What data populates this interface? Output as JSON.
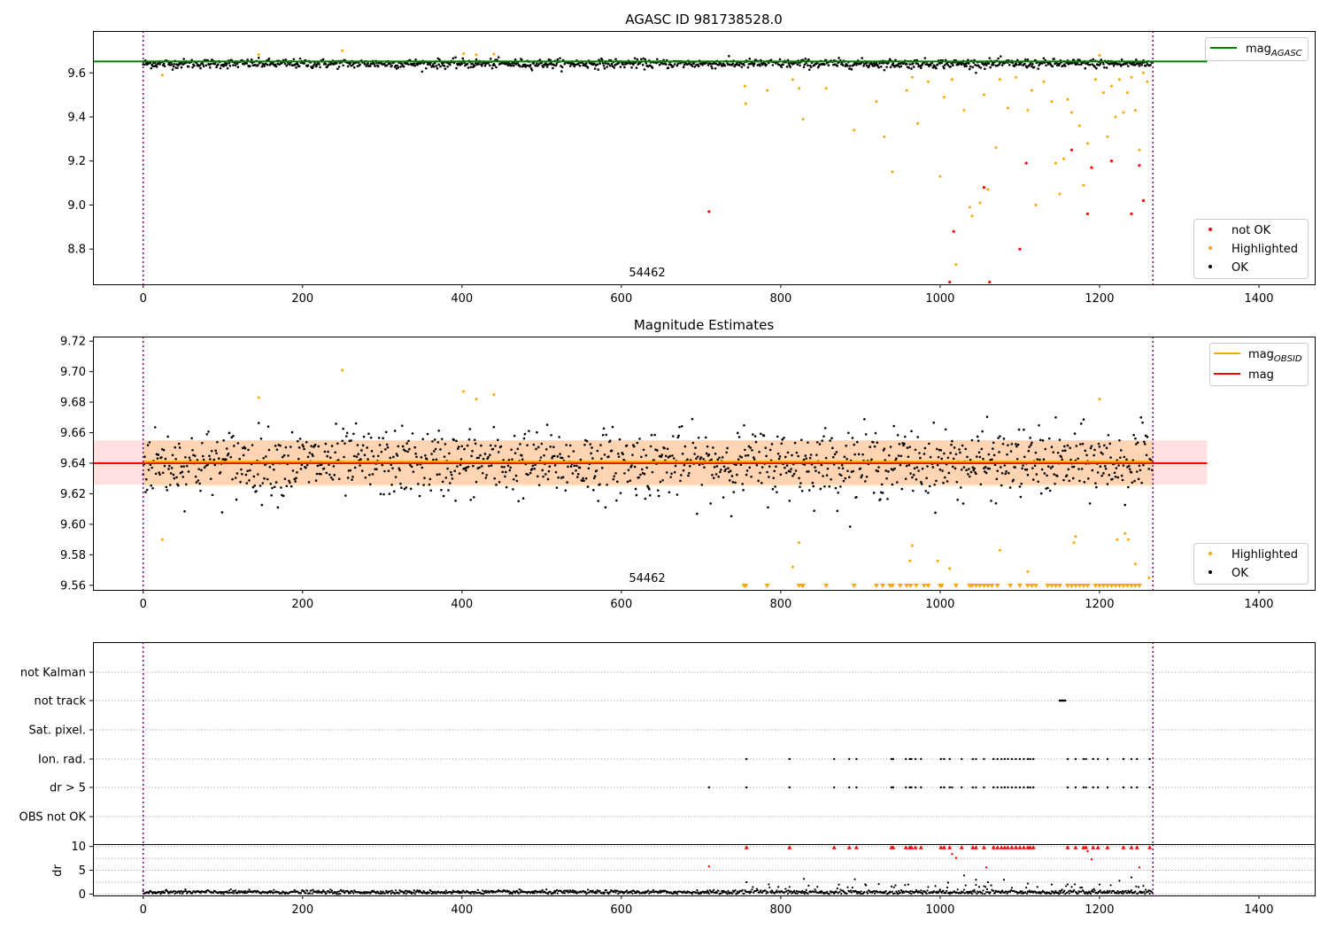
{
  "chart_data": [
    {
      "type": "scatter",
      "title": "AGASC ID 981738528.0",
      "xlim": [
        -63,
        1470
      ],
      "ylim": [
        8.64,
        9.79
      ],
      "xticks": [
        0,
        200,
        400,
        600,
        800,
        1000,
        1200,
        1400
      ],
      "yticks": [
        8.8,
        9.0,
        9.2,
        9.4,
        9.6
      ],
      "annotation": "54462",
      "vlines": [
        0,
        1267
      ],
      "hline": {
        "label": "mag_AGASC",
        "value": 9.652,
        "color": "#008000"
      },
      "legend": {
        "placement": "lower-right",
        "entries": [
          {
            "label": "not OK",
            "color": "#ff0000"
          },
          {
            "label": "Highlighted",
            "color": "#ffa500"
          },
          {
            "label": "OK",
            "color": "#000000"
          }
        ]
      },
      "series": [
        {
          "name": "OK",
          "color": "#000000",
          "n": 1267,
          "y_center": 9.64,
          "y_spread": 0.013
        },
        {
          "name": "Highlighted",
          "color": "#ffa500",
          "points": [
            [
              24,
              9.59
            ],
            [
              145,
              9.683
            ],
            [
              250,
              9.701
            ],
            [
              402,
              9.687
            ],
            [
              418,
              9.682
            ],
            [
              440,
              9.685
            ],
            [
              755,
              9.54
            ],
            [
              756,
              9.46
            ],
            [
              783,
              9.52
            ],
            [
              815,
              9.57
            ],
            [
              823,
              9.53
            ],
            [
              828,
              9.39
            ],
            [
              857,
              9.53
            ],
            [
              892,
              9.34
            ],
            [
              920,
              9.47
            ],
            [
              930,
              9.31
            ],
            [
              940,
              9.15
            ],
            [
              958,
              9.52
            ],
            [
              965,
              9.58
            ],
            [
              972,
              9.37
            ],
            [
              985,
              9.56
            ],
            [
              1000,
              9.13
            ],
            [
              1005,
              9.49
            ],
            [
              1015,
              9.57
            ],
            [
              1020,
              8.73
            ],
            [
              1030,
              9.43
            ],
            [
              1037,
              8.99
            ],
            [
              1040,
              8.95
            ],
            [
              1050,
              9.01
            ],
            [
              1055,
              9.5
            ],
            [
              1060,
              9.07
            ],
            [
              1070,
              9.26
            ],
            [
              1075,
              9.57
            ],
            [
              1085,
              9.44
            ],
            [
              1095,
              9.58
            ],
            [
              1110,
              9.43
            ],
            [
              1115,
              9.52
            ],
            [
              1120,
              9.0
            ],
            [
              1130,
              9.56
            ],
            [
              1140,
              9.47
            ],
            [
              1145,
              9.19
            ],
            [
              1150,
              9.05
            ],
            [
              1155,
              9.21
            ],
            [
              1160,
              9.48
            ],
            [
              1165,
              9.42
            ],
            [
              1175,
              9.36
            ],
            [
              1180,
              9.09
            ],
            [
              1185,
              9.28
            ],
            [
              1195,
              9.57
            ],
            [
              1200,
              9.68
            ],
            [
              1205,
              9.51
            ],
            [
              1210,
              9.31
            ],
            [
              1215,
              9.54
            ],
            [
              1220,
              9.4
            ],
            [
              1225,
              9.57
            ],
            [
              1230,
              9.42
            ],
            [
              1235,
              9.51
            ],
            [
              1240,
              9.58
            ],
            [
              1245,
              9.43
            ],
            [
              1250,
              9.25
            ],
            [
              1255,
              9.6
            ],
            [
              1260,
              9.56
            ]
          ]
        },
        {
          "name": "not OK",
          "color": "#ff0000",
          "points": [
            [
              710,
              8.97
            ],
            [
              1012,
              8.65
            ],
            [
              1017,
              8.88
            ],
            [
              1055,
              9.08
            ],
            [
              1062,
              8.65
            ],
            [
              1100,
              8.8
            ],
            [
              1108,
              9.19
            ],
            [
              1165,
              9.25
            ],
            [
              1185,
              8.96
            ],
            [
              1190,
              9.17
            ],
            [
              1215,
              9.2
            ],
            [
              1240,
              8.96
            ],
            [
              1250,
              9.18
            ],
            [
              1255,
              9.02
            ]
          ]
        }
      ]
    },
    {
      "type": "scatter",
      "title": "Magnitude Estimates",
      "xlim": [
        -63,
        1470
      ],
      "ylim": [
        9.557,
        9.723
      ],
      "xticks": [
        0,
        200,
        400,
        600,
        800,
        1000,
        1200,
        1400
      ],
      "yticks": [
        9.56,
        9.58,
        9.6,
        9.62,
        9.64,
        9.66,
        9.68,
        9.7,
        9.72
      ],
      "annotation": "54462",
      "vlines": [
        0,
        1267
      ],
      "mag_obsid": {
        "label": "mag_OBSID",
        "value": 9.641,
        "band": [
          9.625,
          9.655
        ],
        "color": "#ffa500"
      },
      "mag": {
        "label": "mag",
        "value": 9.64,
        "band": [
          9.626,
          9.655
        ],
        "color": "#ff0000"
      },
      "legend_top": {
        "placement": "upper-right",
        "entries": [
          {
            "label": "mag_OBSID",
            "color": "#ffa500"
          },
          {
            "label": "mag",
            "color": "#ff0000"
          }
        ]
      },
      "legend_bottom": {
        "placement": "lower-right",
        "entries": [
          {
            "label": "Highlighted",
            "color": "#ffa500"
          },
          {
            "label": "OK",
            "color": "#000000"
          }
        ]
      },
      "series": [
        {
          "name": "OK",
          "color": "#000000",
          "n": 1267,
          "y_center": 9.64,
          "y_spread": 0.013
        },
        {
          "name": "Highlighted",
          "color": "#ffa500",
          "points": [
            [
              24,
              9.59
            ],
            [
              145,
              9.683
            ],
            [
              250,
              9.701
            ],
            [
              402,
              9.687
            ],
            [
              418,
              9.682
            ],
            [
              440,
              9.685
            ],
            [
              823,
              9.588
            ],
            [
              815,
              9.572
            ],
            [
              965,
              9.586
            ],
            [
              962,
              9.576
            ],
            [
              997,
              9.576
            ],
            [
              1012,
              9.571
            ],
            [
              1075,
              9.583
            ],
            [
              1110,
              9.569
            ],
            [
              1170,
              9.592
            ],
            [
              1168,
              9.588
            ],
            [
              1200,
              9.682
            ],
            [
              1222,
              9.59
            ],
            [
              1232,
              9.594
            ],
            [
              1236,
              9.59
            ],
            [
              1245,
              9.574
            ],
            [
              1262,
              9.565
            ]
          ]
        },
        {
          "name": "Highlighted (below range)",
          "color": "#ffa500",
          "x": [
            754,
            756,
            783,
            823,
            827,
            828,
            857,
            892,
            920,
            928,
            937,
            940,
            950,
            958,
            963,
            970,
            980,
            985,
            1000,
            1002,
            1020,
            1037,
            1040,
            1045,
            1050,
            1055,
            1060,
            1065,
            1072,
            1088,
            1100,
            1110,
            1115,
            1120,
            1135,
            1140,
            1145,
            1150,
            1160,
            1165,
            1170,
            1175,
            1180,
            1185,
            1195,
            1200,
            1205,
            1210,
            1215,
            1220,
            1225,
            1230,
            1235,
            1240,
            1245,
            1250
          ]
        }
      ]
    },
    {
      "type": "scatter",
      "title": "",
      "xlim": [
        -63,
        1470
      ],
      "categories": [
        "not Kalman",
        "not track",
        "Sat. pixel.",
        "Ion. rad.",
        "dr > 5",
        "OBS not OK"
      ],
      "vlines": [
        0,
        1267
      ],
      "flags": {
        "not track": [
          1150,
          1151,
          1152,
          1153,
          1154,
          1155,
          1156,
          1157
        ],
        "Ion. rad.": [
          757,
          811,
          867,
          886,
          895,
          939,
          941,
          957,
          962,
          964,
          969,
          976,
          1001,
          1005,
          1012,
          1027,
          1041,
          1045,
          1055,
          1067,
          1072,
          1077,
          1081,
          1085,
          1090,
          1095,
          1100,
          1105,
          1110,
          1113,
          1117,
          1160,
          1170,
          1180,
          1183,
          1192,
          1198,
          1210,
          1230,
          1240,
          1247,
          1263
        ],
        "dr > 5": [
          710,
          757,
          811,
          867,
          886,
          895,
          939,
          941,
          957,
          962,
          964,
          969,
          976,
          1001,
          1005,
          1012,
          1015,
          1027,
          1041,
          1045,
          1055,
          1067,
          1072,
          1077,
          1081,
          1085,
          1090,
          1095,
          1100,
          1105,
          1110,
          1113,
          1117,
          1160,
          1170,
          1180,
          1183,
          1192,
          1198,
          1210,
          1230,
          1240,
          1247,
          1263
        ]
      }
    },
    {
      "type": "scatter",
      "title": "",
      "xlim": [
        -63,
        1470
      ],
      "ylabel": "dr",
      "ylim": [
        -0.3,
        10.5
      ],
      "yticks": [
        0,
        5,
        10
      ],
      "vlines": [
        0,
        1267
      ],
      "series": [
        {
          "name": "OK",
          "color": "#000000",
          "n": 1267,
          "y_center": 0.4,
          "y_spread": 0.2
        },
        {
          "name": "not OK",
          "color": "#ff0000",
          "points": [
            [
              710,
              5.8
            ],
            [
              757,
              9.8
            ],
            [
              811,
              9.8
            ],
            [
              867,
              9.8
            ],
            [
              886,
              9.8
            ],
            [
              895,
              9.8
            ],
            [
              939,
              9.8
            ],
            [
              941,
              9.8
            ],
            [
              957,
              9.8
            ],
            [
              962,
              9.8
            ],
            [
              964,
              9.8
            ],
            [
              969,
              9.8
            ],
            [
              976,
              9.8
            ],
            [
              1001,
              9.8
            ],
            [
              1005,
              9.8
            ],
            [
              1012,
              9.8
            ],
            [
              1015,
              8.4
            ],
            [
              1020,
              7.6
            ],
            [
              1027,
              9.8
            ],
            [
              1041,
              9.8
            ],
            [
              1045,
              9.8
            ],
            [
              1055,
              9.8
            ],
            [
              1058,
              5.6
            ],
            [
              1067,
              9.8
            ],
            [
              1072,
              9.8
            ],
            [
              1077,
              9.8
            ],
            [
              1081,
              9.8
            ],
            [
              1085,
              9.8
            ],
            [
              1090,
              9.8
            ],
            [
              1095,
              9.8
            ],
            [
              1100,
              9.8
            ],
            [
              1105,
              9.8
            ],
            [
              1110,
              9.8
            ],
            [
              1113,
              9.8
            ],
            [
              1117,
              9.8
            ],
            [
              1160,
              9.8
            ],
            [
              1170,
              9.8
            ],
            [
              1180,
              9.8
            ],
            [
              1183,
              9.8
            ],
            [
              1185,
              9.0
            ],
            [
              1190,
              7.3
            ],
            [
              1192,
              9.8
            ],
            [
              1198,
              9.8
            ],
            [
              1210,
              9.8
            ],
            [
              1230,
              9.8
            ],
            [
              1240,
              9.8
            ],
            [
              1247,
              9.8
            ],
            [
              1250,
              5.6
            ],
            [
              1263,
              9.8
            ]
          ]
        },
        {
          "name": "Highlighted",
          "color": "#000000",
          "points": [
            [
              757,
              2.5
            ],
            [
              811,
              1.5
            ],
            [
              829,
              3.2
            ],
            [
              893,
              3.1
            ],
            [
              960,
              2.0
            ],
            [
              1010,
              2.4
            ],
            [
              1030,
              3.9
            ],
            [
              1045,
              3.0
            ],
            [
              1060,
              2.5
            ],
            [
              1080,
              3.0
            ],
            [
              1110,
              2.2
            ],
            [
              1140,
              2.0
            ],
            [
              1165,
              1.5
            ],
            [
              1200,
              2.0
            ],
            [
              1225,
              2.8
            ],
            [
              1240,
              3.5
            ]
          ]
        }
      ]
    }
  ]
}
